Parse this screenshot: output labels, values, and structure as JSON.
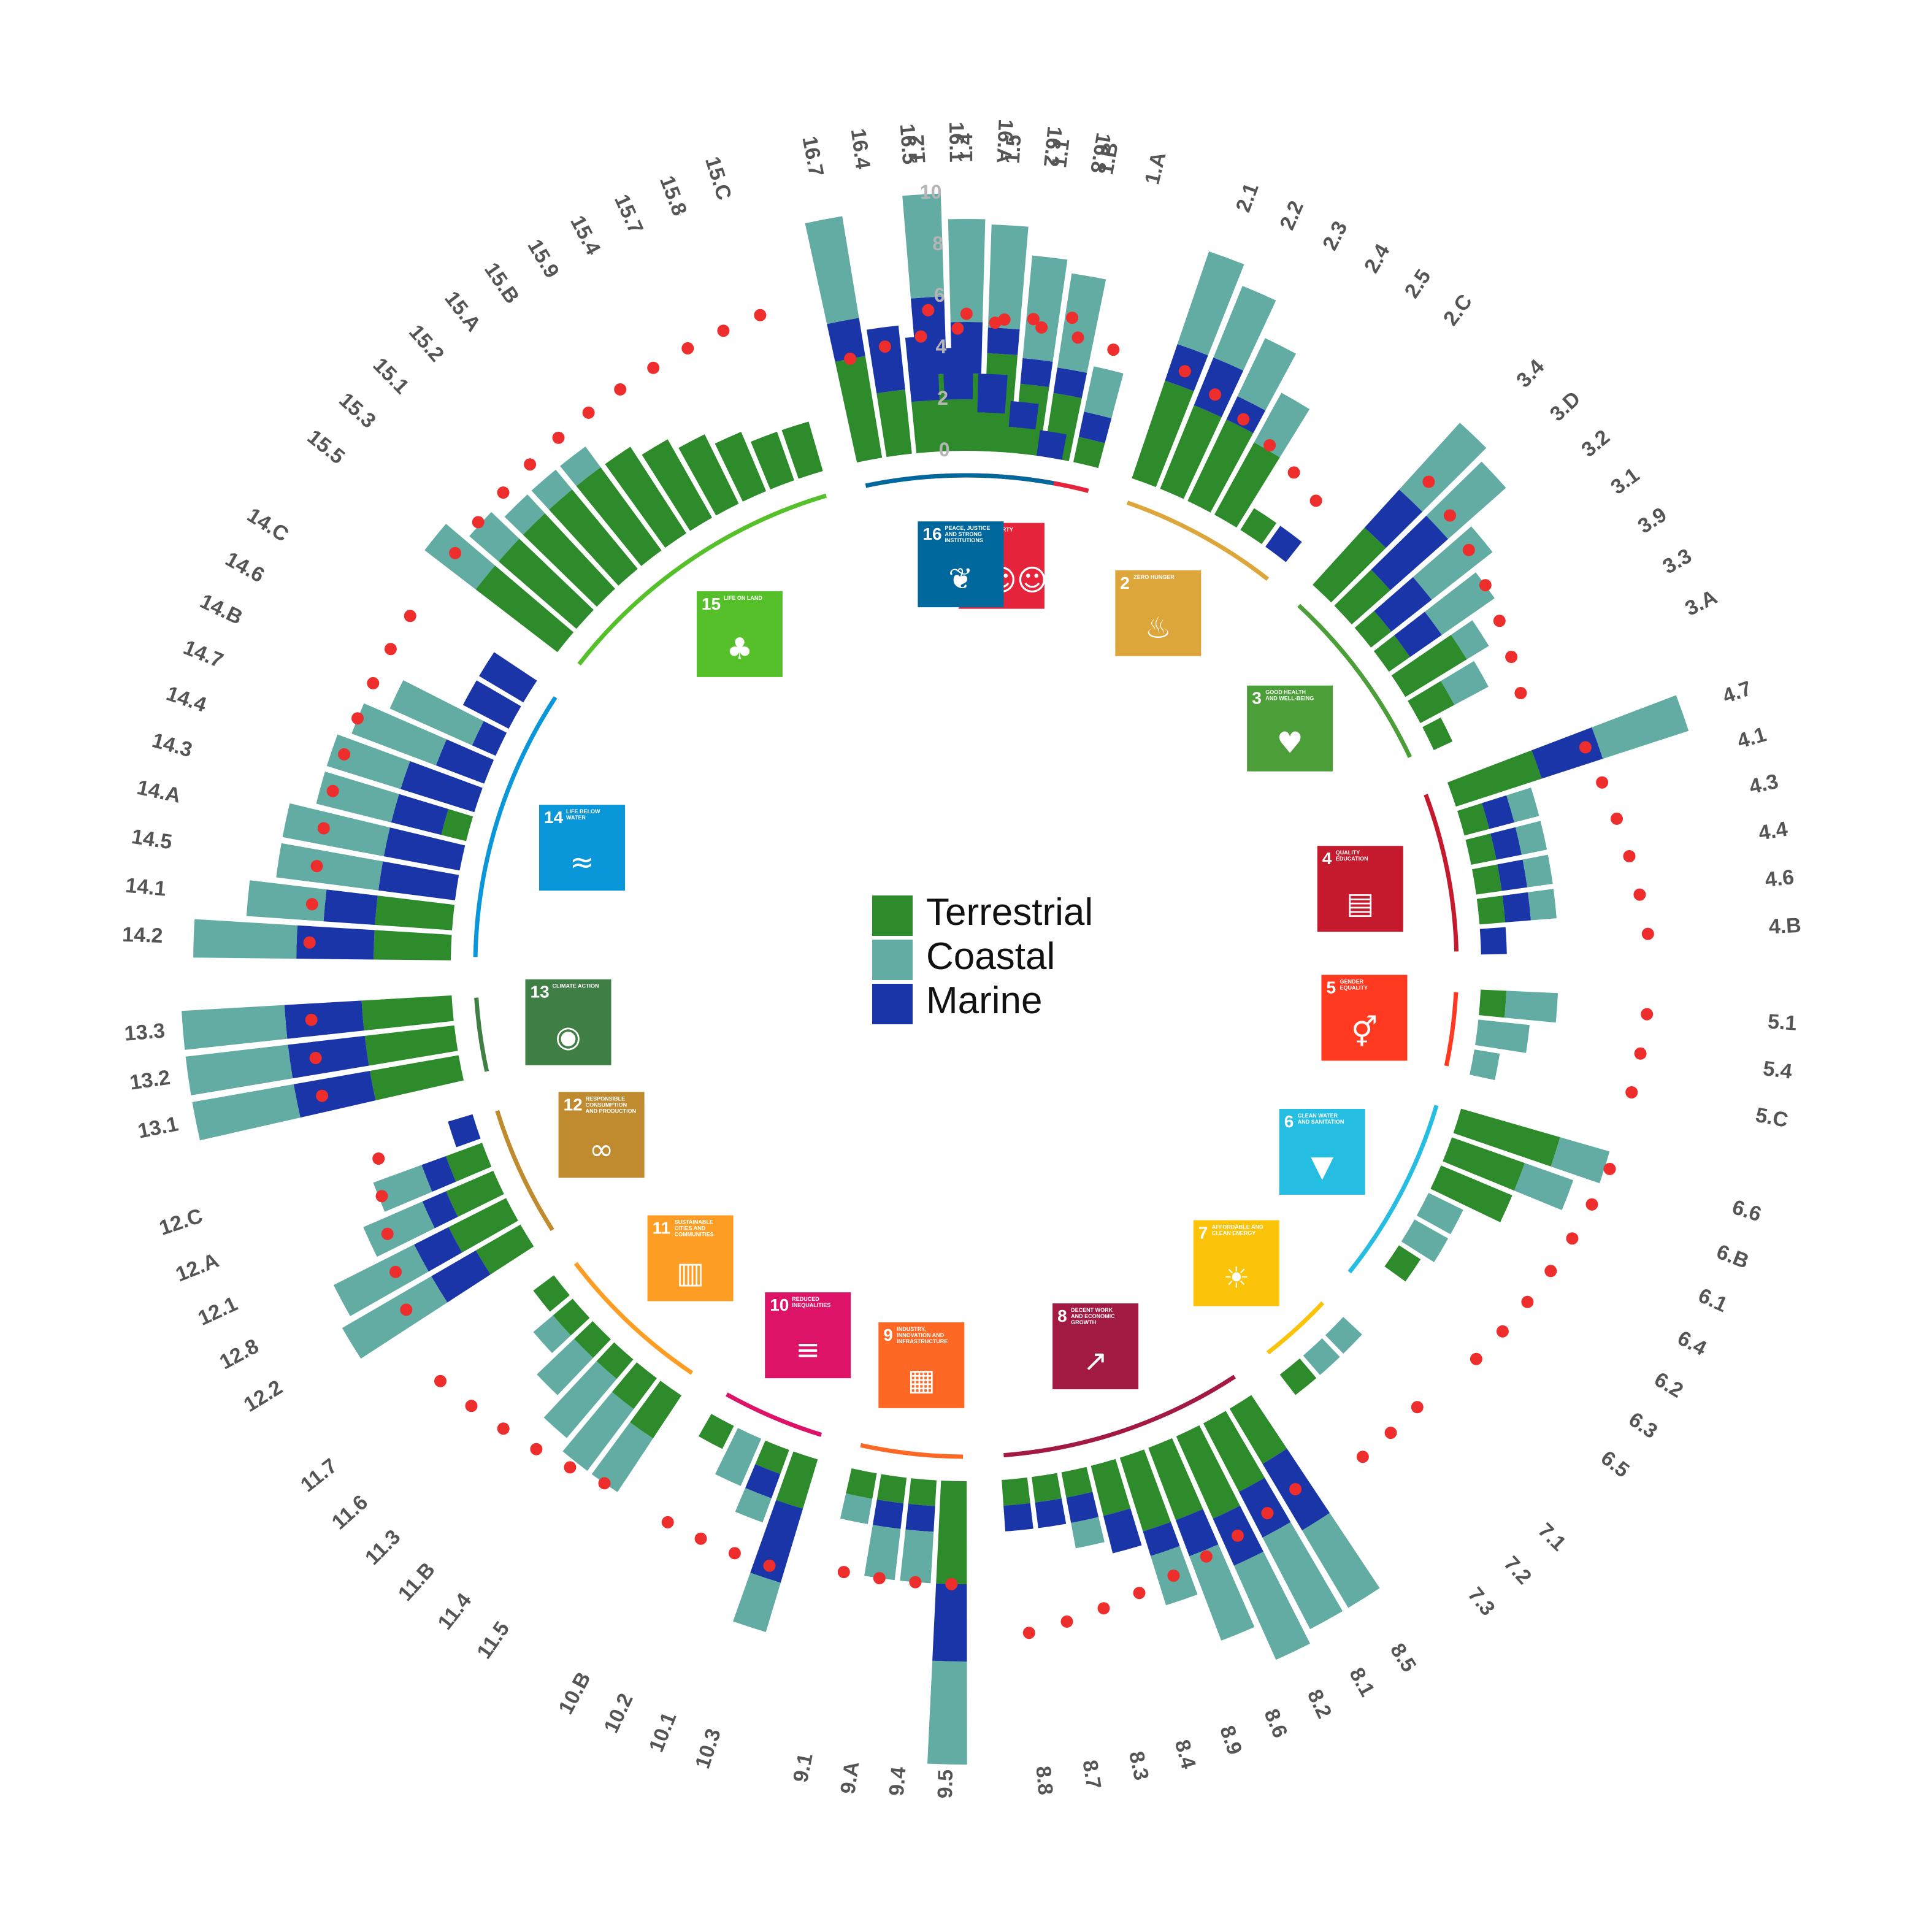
{
  "chart_data": {
    "type": "bar",
    "layout": "circular",
    "stacked": true,
    "ylim": [
      0,
      10
    ],
    "yticks": [
      "0",
      "2",
      "4",
      "6",
      "8",
      "10"
    ],
    "legend": {
      "placement": "center",
      "entries": [
        {
          "name": "Terrestrial",
          "color": "#2d8b2b"
        },
        {
          "name": "Coastal",
          "color": "#62aca3"
        },
        {
          "name": "Marine",
          "color": "#1a35a8"
        }
      ]
    },
    "marker_color": "#ee2d2d",
    "groups": [
      {
        "number": "1",
        "name": "NO POVERTY",
        "icon": "family-icon",
        "color": "#e5243b",
        "line": [
          5.5,
          4.6
        ],
        "targets": [
          {
            "label": "1.2",
            "terrestrial": 3,
            "marine": 3,
            "coastal": 4
          },
          {
            "label": "1.4",
            "terrestrial": 3,
            "marine": 2,
            "coastal": 4
          },
          {
            "label": "1.5",
            "terrestrial": 3.8,
            "marine": 1,
            "coastal": 4
          },
          {
            "label": "1.1",
            "terrestrial": 2.7,
            "marine": 1,
            "coastal": 4
          },
          {
            "label": "1.B",
            "terrestrial": 2.5,
            "marine": 1,
            "coastal": 3.7
          },
          {
            "label": "1.A",
            "terrestrial": 1,
            "marine": 1,
            "coastal": 1.8
          }
        ]
      },
      {
        "number": "2",
        "name": "ZERO HUNGER",
        "icon": "bowl-icon",
        "color": "#dda63a",
        "line": [
          4.6,
          2.6
        ],
        "targets": [
          {
            "label": "2.1",
            "terrestrial": 4,
            "marine": 1.5,
            "coastal": 3.8
          },
          {
            "label": "2.2",
            "terrestrial": 3.5,
            "marine": 2,
            "coastal": 3
          },
          {
            "label": "2.3",
            "terrestrial": 3.5,
            "marine": 1,
            "coastal": 2.5
          },
          {
            "label": "2.4",
            "terrestrial": 3.2,
            "marine": 0,
            "coastal": 2.2
          },
          {
            "label": "2.5",
            "terrestrial": 1,
            "marine": 0,
            "coastal": 0
          },
          {
            "label": "2.C",
            "terrestrial": 0,
            "marine": 1,
            "coastal": 0
          }
        ]
      },
      {
        "number": "3",
        "name": "GOOD HEALTH AND WELL-BEING",
        "icon": "heartbeat-icon",
        "color": "#4c9f38",
        "line": [
          6,
          4
        ],
        "targets": [
          {
            "label": "3.4",
            "terrestrial": 3,
            "marine": 2,
            "coastal": 3.5
          },
          {
            "label": "3.D",
            "terrestrial": 2,
            "marine": 3,
            "coastal": 3
          },
          {
            "label": "3.2",
            "terrestrial": 1,
            "marine": 2,
            "coastal": 3
          },
          {
            "label": "3.1",
            "terrestrial": 1,
            "marine": 1.5,
            "coastal": 2.5
          },
          {
            "label": "3.9",
            "terrestrial": 2.8,
            "marine": 0,
            "coastal": 1
          },
          {
            "label": "3.3",
            "terrestrial": 1.5,
            "marine": 0,
            "coastal": 1.5
          },
          {
            "label": "3.A",
            "terrestrial": 0.8,
            "marine": 0,
            "coastal": 0
          }
        ]
      },
      {
        "number": "4",
        "name": "QUALITY EDUCATION",
        "icon": "book-icon",
        "color": "#c5192d",
        "line": [
          5.5,
          6.5
        ],
        "targets": [
          {
            "label": "4.7",
            "terrestrial": 3.5,
            "marine": 2.5,
            "coastal": 3.5
          },
          {
            "label": "4.1",
            "terrestrial": 1,
            "marine": 1,
            "coastal": 1
          },
          {
            "label": "4.3",
            "terrestrial": 1,
            "marine": 1,
            "coastal": 1
          },
          {
            "label": "4.4",
            "terrestrial": 1,
            "marine": 1,
            "coastal": 1
          },
          {
            "label": "4.6",
            "terrestrial": 1,
            "marine": 1,
            "coastal": 1
          },
          {
            "label": "4.B",
            "terrestrial": 0,
            "marine": 1,
            "coastal": 0
          }
        ]
      },
      {
        "number": "5",
        "name": "GENDER EQUALITY",
        "icon": "gender-icon",
        "color": "#ff3a21",
        "line": [
          6.5,
          6.3
        ],
        "targets": [
          {
            "label": "5.1",
            "terrestrial": 1,
            "marine": 0,
            "coastal": 2
          },
          {
            "label": "5.4",
            "terrestrial": 0,
            "marine": 0,
            "coastal": 2
          },
          {
            "label": "5.C",
            "terrestrial": 0,
            "marine": 0,
            "coastal": 1
          }
        ]
      },
      {
        "number": "6",
        "name": "CLEAN WATER AND SANITATION",
        "icon": "water-icon",
        "color": "#26bde2",
        "line": [
          6.2,
          5
        ],
        "targets": [
          {
            "label": "6.6",
            "terrestrial": 4,
            "marine": 0,
            "coastal": 2
          },
          {
            "label": "6.B",
            "terrestrial": 3,
            "marine": 0,
            "coastal": 2
          },
          {
            "label": "6.1",
            "terrestrial": 3,
            "marine": 0,
            "coastal": 0
          },
          {
            "label": "6.4",
            "terrestrial": 0,
            "marine": 0,
            "coastal": 1.5
          },
          {
            "label": "6.2",
            "terrestrial": 0,
            "marine": 0,
            "coastal": 1.5
          },
          {
            "label": "6.3",
            "terrestrial": 1,
            "marine": 0,
            "coastal": 0
          },
          {
            "label": "6.5",
            "terrestrial": 0,
            "marine": 0,
            "coastal": 0
          }
        ]
      },
      {
        "number": "7",
        "name": "AFFORDABLE AND CLEAN ENERGY",
        "icon": "power-icon",
        "color": "#fcc30b",
        "line": [
          4.5,
          4.5
        ],
        "targets": [
          {
            "label": "7.1",
            "terrestrial": 0,
            "marine": 0,
            "coastal": 1
          },
          {
            "label": "7.2",
            "terrestrial": 0,
            "marine": 0,
            "coastal": 1
          },
          {
            "label": "7.3",
            "terrestrial": 1,
            "marine": 0,
            "coastal": 0
          }
        ]
      },
      {
        "number": "8",
        "name": "DECENT WORK AND ECONOMIC GROWTH",
        "icon": "growth-icon",
        "color": "#a21942",
        "line": [
          4,
          6
        ],
        "targets": [
          {
            "label": "8.5",
            "terrestrial": 2.5,
            "marine": 3,
            "coastal": 3.5
          },
          {
            "label": "8.1",
            "terrestrial": 3,
            "marine": 2,
            "coastal": 4
          },
          {
            "label": "8.2",
            "terrestrial": 3.5,
            "marine": 2,
            "coastal": 4
          },
          {
            "label": "8.6",
            "terrestrial": 3,
            "marine": 1.5,
            "coastal": 3.5
          },
          {
            "label": "8.9",
            "terrestrial": 3,
            "marine": 1,
            "coastal": 2
          },
          {
            "label": "8.4",
            "terrestrial": 2,
            "marine": 1.5,
            "coastal": 0
          },
          {
            "label": "8.3",
            "terrestrial": 1,
            "marine": 1,
            "coastal": 1
          },
          {
            "label": "8.7",
            "terrestrial": 1,
            "marine": 1,
            "coastal": 0
          },
          {
            "label": "8.8",
            "terrestrial": 1,
            "marine": 1,
            "coastal": 0
          }
        ]
      },
      {
        "number": "9",
        "name": "INDUSTRY, INNOVATION AND INFRASTRUCTURE",
        "icon": "cubes-icon",
        "color": "#fd6925",
        "line": [
          4,
          4
        ],
        "targets": [
          {
            "label": "9.5",
            "terrestrial": 4,
            "marine": 3,
            "coastal": 4
          },
          {
            "label": "9.4",
            "terrestrial": 1,
            "marine": 1,
            "coastal": 2
          },
          {
            "label": "9.A",
            "terrestrial": 1,
            "marine": 1,
            "coastal": 2
          },
          {
            "label": "9.1",
            "terrestrial": 1,
            "marine": 0,
            "coastal": 1
          }
        ]
      },
      {
        "number": "10",
        "name": "REDUCED INEQUALITIES",
        "icon": "equality-icon",
        "color": "#dd1367",
        "line": [
          4.5,
          4.5
        ],
        "targets": [
          {
            "label": "10.3",
            "terrestrial": 2,
            "marine": 3,
            "coastal": 2
          },
          {
            "label": "10.1",
            "terrestrial": 1,
            "marine": 1,
            "coastal": 1
          },
          {
            "label": "10.2",
            "terrestrial": 0,
            "marine": 0,
            "coastal": 2
          },
          {
            "label": "10.B",
            "terrestrial": 1,
            "marine": 0,
            "coastal": 0
          }
        ]
      },
      {
        "number": "11",
        "name": "SUSTAINABLE CITIES AND COMMUNITIES",
        "icon": "city-icon",
        "color": "#fd9d24",
        "line": [
          4.5,
          6
        ],
        "targets": [
          {
            "label": "11.5",
            "terrestrial": 2,
            "marine": 0,
            "coastal": 2.5
          },
          {
            "label": "11.4",
            "terrestrial": 1.5,
            "marine": 0,
            "coastal": 3
          },
          {
            "label": "11.B",
            "terrestrial": 1,
            "marine": 0,
            "coastal": 3
          },
          {
            "label": "11.3",
            "terrestrial": 1,
            "marine": 0,
            "coastal": 2
          },
          {
            "label": "11.6",
            "terrestrial": 1,
            "marine": 0,
            "coastal": 1
          },
          {
            "label": "11.7",
            "terrestrial": 1,
            "marine": 0,
            "coastal": 0
          }
        ]
      },
      {
        "number": "12",
        "name": "RESPONSIBLE CONSUMPTION AND PRODUCTION",
        "icon": "infinity-icon",
        "color": "#bf8b2e",
        "line": [
          5.5,
          4
        ],
        "targets": [
          {
            "label": "12.2",
            "terrestrial": 2,
            "marine": 2,
            "coastal": 4
          },
          {
            "label": "12.8",
            "terrestrial": 2.5,
            "marine": 1.5,
            "coastal": 3.5
          },
          {
            "label": "12.1",
            "terrestrial": 2,
            "marine": 1,
            "coastal": 2.5
          },
          {
            "label": "12.A",
            "terrestrial": 1.5,
            "marine": 1,
            "coastal": 2
          },
          {
            "label": "12.C",
            "terrestrial": 0,
            "marine": 1,
            "coastal": 0
          }
        ]
      },
      {
        "number": "13",
        "name": "CLIMATE ACTION",
        "icon": "earth-eye-icon",
        "color": "#3f7e44",
        "line": [
          5.5,
          5.5
        ],
        "targets": [
          {
            "label": "13.1",
            "terrestrial": 3.5,
            "marine": 3,
            "coastal": 4
          },
          {
            "label": "13.2",
            "terrestrial": 3.5,
            "marine": 3,
            "coastal": 4
          },
          {
            "label": "13.3",
            "terrestrial": 3.5,
            "marine": 3,
            "coastal": 4
          }
        ]
      },
      {
        "number": "14",
        "name": "LIFE BELOW WATER",
        "icon": "fish-icon",
        "color": "#0a97d9",
        "line": [
          5.5,
          5.5
        ],
        "targets": [
          {
            "label": "14.2",
            "terrestrial": 3,
            "marine": 3,
            "coastal": 4
          },
          {
            "label": "14.1",
            "terrestrial": 3,
            "marine": 2,
            "coastal": 3
          },
          {
            "label": "14.5",
            "terrestrial": 0,
            "marine": 3,
            "coastal": 4
          },
          {
            "label": "14.A",
            "terrestrial": 0,
            "marine": 3,
            "coastal": 4
          },
          {
            "label": "14.3",
            "terrestrial": 1,
            "marine": 2,
            "coastal": 3
          },
          {
            "label": "14.4",
            "terrestrial": 0,
            "marine": 3,
            "coastal": 3
          },
          {
            "label": "14.7",
            "terrestrial": 0,
            "marine": 2,
            "coastal": 3.5
          },
          {
            "label": "14.B",
            "terrestrial": 0,
            "marine": 1,
            "coastal": 3.5
          },
          {
            "label": "14.6",
            "terrestrial": 0,
            "marine": 2,
            "coastal": 0
          },
          {
            "label": "14.C",
            "terrestrial": 0,
            "marine": 2,
            "coastal": 0
          }
        ]
      },
      {
        "number": "15",
        "name": "LIFE ON LAND",
        "icon": "tree-icon",
        "color": "#56c02b",
        "line": [
          5.5,
          6.5
        ],
        "targets": [
          {
            "label": "15.5",
            "terrestrial": 4,
            "marine": 0,
            "coastal": 2.5
          },
          {
            "label": "15.3",
            "terrestrial": 4,
            "marine": 0,
            "coastal": 1.5
          },
          {
            "label": "15.1",
            "terrestrial": 4,
            "marine": 0,
            "coastal": 1
          },
          {
            "label": "15.2",
            "terrestrial": 4,
            "marine": 0,
            "coastal": 1
          },
          {
            "label": "15.A",
            "terrestrial": 4,
            "marine": 0,
            "coastal": 1
          },
          {
            "label": "15.B",
            "terrestrial": 4,
            "marine": 0,
            "coastal": 0
          },
          {
            "label": "15.9",
            "terrestrial": 3.5,
            "marine": 0,
            "coastal": 0
          },
          {
            "label": "15.4",
            "terrestrial": 3,
            "marine": 0,
            "coastal": 0
          },
          {
            "label": "15.7",
            "terrestrial": 2.5,
            "marine": 0,
            "coastal": 0
          },
          {
            "label": "15.8",
            "terrestrial": 2,
            "marine": 0,
            "coastal": 0
          },
          {
            "label": "15.C",
            "terrestrial": 2,
            "marine": 0,
            "coastal": 0
          }
        ]
      },
      {
        "number": "16",
        "name": "PEACE, JUSTICE AND STRONG INSTITUTIONS",
        "icon": "dove-icon",
        "color": "#00689d",
        "line": [
          4,
          5.5
        ],
        "targets": [
          {
            "label": "16.7",
            "terrestrial": 4,
            "marine": 1.5,
            "coastal": 4
          },
          {
            "label": "16.4",
            "terrestrial": 2.5,
            "marine": 2.5,
            "coastal": 0
          },
          {
            "label": "16.5",
            "terrestrial": 2,
            "marine": 2.5,
            "coastal": 0
          },
          {
            "label": "16.1",
            "terrestrial": 2,
            "marine": 2,
            "coastal": 0
          },
          {
            "label": "16.A",
            "terrestrial": 1.5,
            "marine": 1.5,
            "coastal": 0
          },
          {
            "label": "16.2",
            "terrestrial": 1,
            "marine": 1,
            "coastal": 0
          },
          {
            "label": "16.8",
            "terrestrial": 0,
            "marine": 1,
            "coastal": 0
          }
        ]
      }
    ]
  }
}
